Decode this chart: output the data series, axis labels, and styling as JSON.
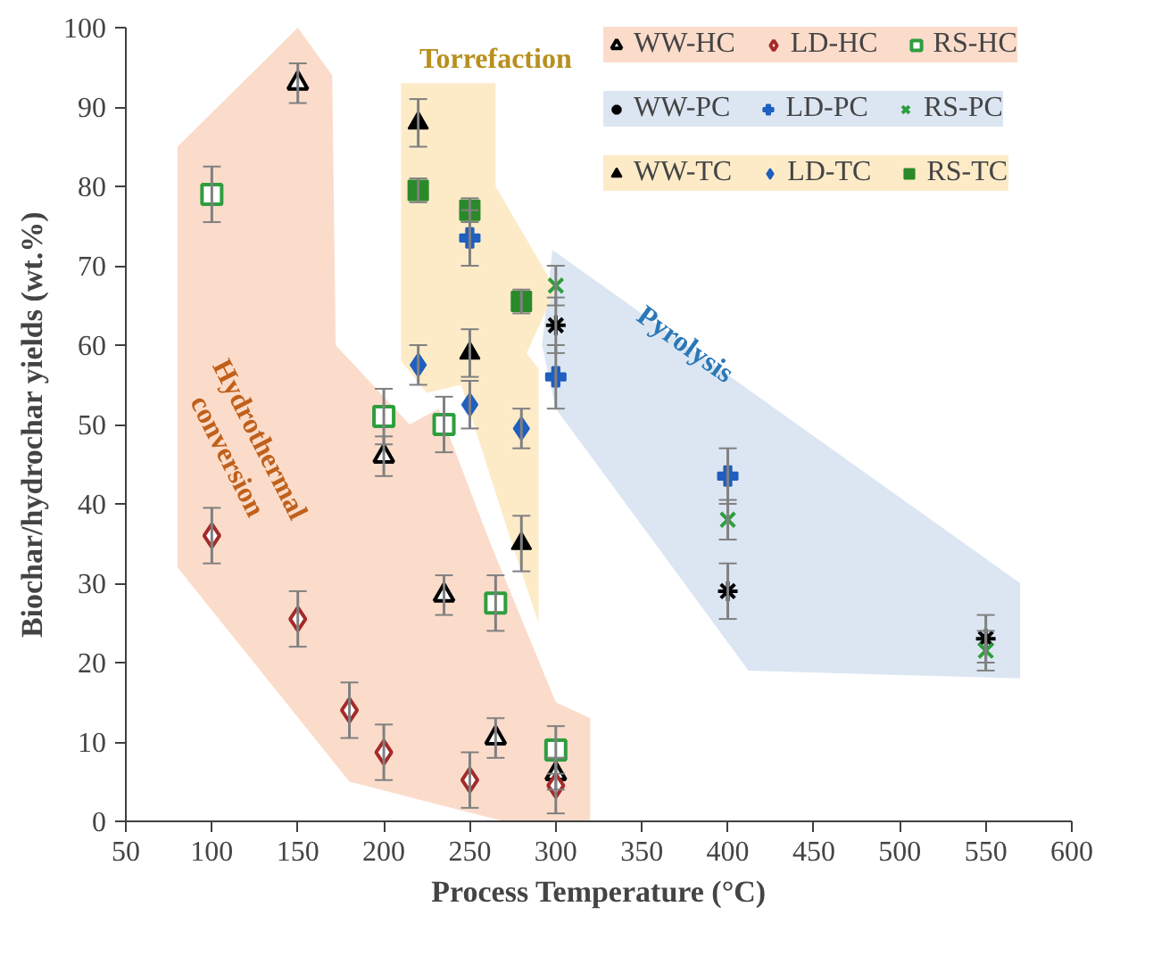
{
  "chart_data": {
    "type": "scatter",
    "xlabel": "Process Temperature (°C)",
    "ylabel": "Biochar/hydrochar yields (wt.%)",
    "xlim": [
      50,
      600
    ],
    "xticks": [
      50,
      100,
      150,
      200,
      250,
      300,
      350,
      400,
      450,
      500,
      550,
      600
    ],
    "ylim": [
      0,
      100
    ],
    "yticks": [
      0,
      10,
      20,
      30,
      40,
      50,
      60,
      70,
      80,
      90,
      100
    ],
    "grid": false,
    "legend": "top right",
    "annotations": [
      "Torrefaction",
      "Hydrothermal\nconversion",
      "Pyrolysis"
    ],
    "series": [
      {
        "type": "area",
        "color": "#fbdccb",
        "x": [
          80,
          150,
          170,
          172,
          215,
          232,
          262,
          300,
          320,
          320,
          270,
          180,
          80
        ],
        "values": [
          85,
          100,
          94,
          60,
          50,
          52,
          35,
          15,
          13,
          0,
          0,
          5,
          32
        ]
      },
      {
        "type": "area",
        "color": "#dce6f2",
        "x": [
          298,
          570,
          570,
          412,
          300,
          292
        ],
        "values": [
          72,
          30,
          18,
          19,
          52,
          60
        ]
      },
      {
        "type": "area",
        "color": "#fdebc8",
        "x": [
          210,
          265,
          265,
          300,
          283,
          290,
          290,
          270,
          245,
          225,
          210
        ],
        "values": [
          93,
          93,
          80,
          67,
          59,
          57,
          25,
          38,
          55,
          54,
          58
        ]
      },
      {
        "name": "WW-HC",
        "color": "#000000",
        "marker": "triangle_open",
        "x": [
          150,
          200,
          235,
          265,
          300
        ],
        "values": [
          93,
          46,
          28.5,
          10.5,
          6
        ],
        "errors": [
          2.5,
          2.5,
          2.5,
          2.5,
          2
        ]
      },
      {
        "name": "LD-HC",
        "color": "#a52a2a",
        "marker": "diamond_open",
        "x": [
          100,
          150,
          180,
          200,
          250,
          300
        ],
        "values": [
          36,
          25.5,
          14,
          8.7,
          5.2,
          4.5
        ],
        "errors": [
          3.5,
          3.5,
          3.5,
          3.5,
          3.5,
          3.5
        ]
      },
      {
        "name": "RS-HC",
        "color": "#2e9e3e",
        "marker": "square_open",
        "x": [
          100,
          200,
          235,
          265,
          300
        ],
        "values": [
          79,
          51,
          50,
          27.5,
          9
        ],
        "errors": [
          3.5,
          3.5,
          3.5,
          3.5,
          3
        ]
      },
      {
        "name": "WW-PC",
        "color": "#000000",
        "marker": "cross",
        "x": [
          300,
          400,
          550
        ],
        "values": [
          62.5,
          29,
          23
        ],
        "errors": [
          3.5,
          3.5,
          3
        ]
      },
      {
        "name": "LD-PC",
        "color": "#1f5fbf",
        "marker": "plus",
        "x": [
          250,
          300,
          400
        ],
        "values": [
          73.5,
          56,
          43.5
        ],
        "errors": [
          3.5,
          4,
          3.5
        ]
      },
      {
        "name": "RS-PC",
        "color": "#2e9e3e",
        "marker": "x",
        "x": [
          300,
          400,
          550
        ],
        "values": [
          67.5,
          38,
          21.5
        ],
        "errors": [
          2.5,
          2.5,
          2.5
        ]
      },
      {
        "name": "WW-TC",
        "color": "#000000",
        "marker": "triangle",
        "x": [
          220,
          250,
          280
        ],
        "values": [
          88,
          59,
          35
        ],
        "errors": [
          3,
          3,
          3.5
        ]
      },
      {
        "name": "LD-TC",
        "color": "#1f5fbf",
        "marker": "diamond",
        "x": [
          220,
          250,
          280
        ],
        "values": [
          57.5,
          52.5,
          49.5
        ],
        "errors": [
          2.5,
          3,
          2.5
        ]
      },
      {
        "name": "RS-TC",
        "color": "#2a8a2a",
        "marker": "square",
        "x": [
          220,
          250,
          280
        ],
        "values": [
          79.5,
          77,
          65.5
        ],
        "errors": [
          1.5,
          1.5,
          1.5
        ]
      }
    ]
  }
}
